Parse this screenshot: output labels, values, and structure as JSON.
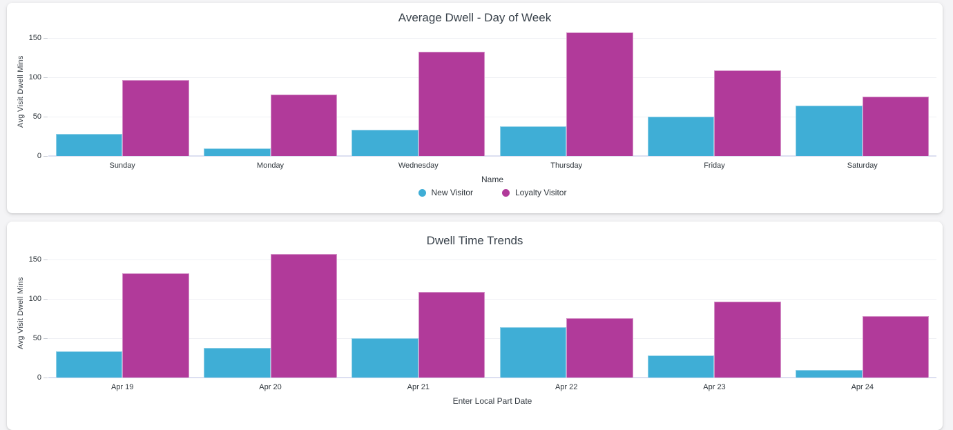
{
  "colors": {
    "new_visitor": "#3faed6",
    "loyalty_visitor": "#b13a9a",
    "card_background": "#ffffff",
    "page_background": "#f4f4f6",
    "title_text": "#39424b",
    "gridline": "#eff0f4",
    "baseline": "#dcdff1"
  },
  "chart_data": [
    {
      "type": "bar",
      "title": "Average Dwell - Day of Week",
      "xlabel": "Name",
      "ylabel": "Avg Visit Dwell Mins",
      "categories": [
        "Sunday",
        "Monday",
        "Wednesday",
        "Thursday",
        "Friday",
        "Saturday"
      ],
      "series": [
        {
          "name": "New Visitor",
          "color": "#3faed6",
          "values": [
            28,
            10,
            33,
            38,
            50,
            64
          ]
        },
        {
          "name": "Loyalty Visitor",
          "color": "#b13a9a",
          "values": [
            96,
            78,
            132,
            157,
            109,
            75
          ]
        }
      ],
      "yticks": [
        0,
        50,
        100,
        150
      ],
      "ylim": [
        0,
        163
      ],
      "grid": true,
      "legend_position": "bottom-center",
      "legend_visible": true
    },
    {
      "type": "bar",
      "title": "Dwell Time Trends",
      "xlabel": "Enter Local Part Date",
      "ylabel": "Avg Visit Dwell Mins",
      "categories": [
        "Apr 19",
        "Apr 20",
        "Apr 21",
        "Apr 22",
        "Apr 23",
        "Apr 24"
      ],
      "series": [
        {
          "name": "New Visitor",
          "color": "#3faed6",
          "values": [
            33,
            38,
            50,
            64,
            28,
            10
          ]
        },
        {
          "name": "Loyalty Visitor",
          "color": "#b13a9a",
          "values": [
            132,
            157,
            109,
            75,
            96,
            78
          ]
        }
      ],
      "yticks": [
        0,
        50,
        100,
        150
      ],
      "ylim": [
        0,
        163
      ],
      "grid": true,
      "legend_position": "bottom-center",
      "legend_visible": false
    }
  ]
}
